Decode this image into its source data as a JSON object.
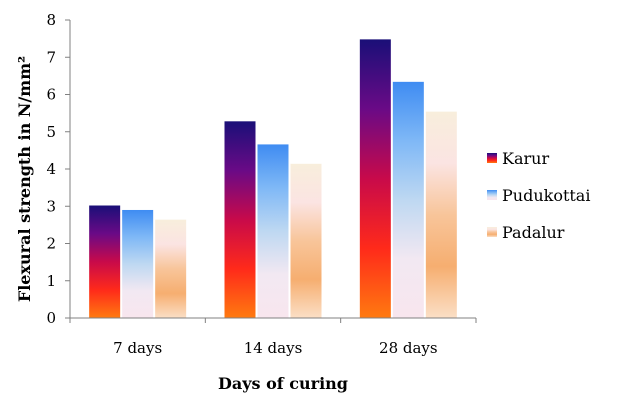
{
  "chart_data": {
    "type": "bar",
    "categories": [
      "7 days",
      "14 days",
      "28 days"
    ],
    "series": [
      {
        "name": "Karur",
        "values": [
          3.02,
          5.28,
          7.48
        ],
        "gradient": [
          "#1a0f78",
          "#6a0a86",
          "#c80a4a",
          "#ff2a1a",
          "#ff7a10"
        ]
      },
      {
        "name": "Pudukottai",
        "values": [
          2.9,
          4.66,
          6.34
        ],
        "gradient": [
          "#3f8cf2",
          "#7fb8f6",
          "#bed8f2",
          "#f2e8f2",
          "#f8e6ee"
        ]
      },
      {
        "name": "Padalur",
        "values": [
          2.64,
          4.14,
          5.54
        ],
        "gradient": [
          "#f8eedc",
          "#fbe4e2",
          "#f8c59a",
          "#f6ae70",
          "#fbdfc6"
        ]
      }
    ],
    "title": "",
    "xlabel": "Days of curing",
    "ylabel": "Flexural  strength in N/mm²",
    "ylim": [
      0,
      8
    ],
    "yticks": [
      0,
      1,
      2,
      3,
      4,
      5,
      6,
      7,
      8
    ],
    "grid": false,
    "legend": "right"
  }
}
